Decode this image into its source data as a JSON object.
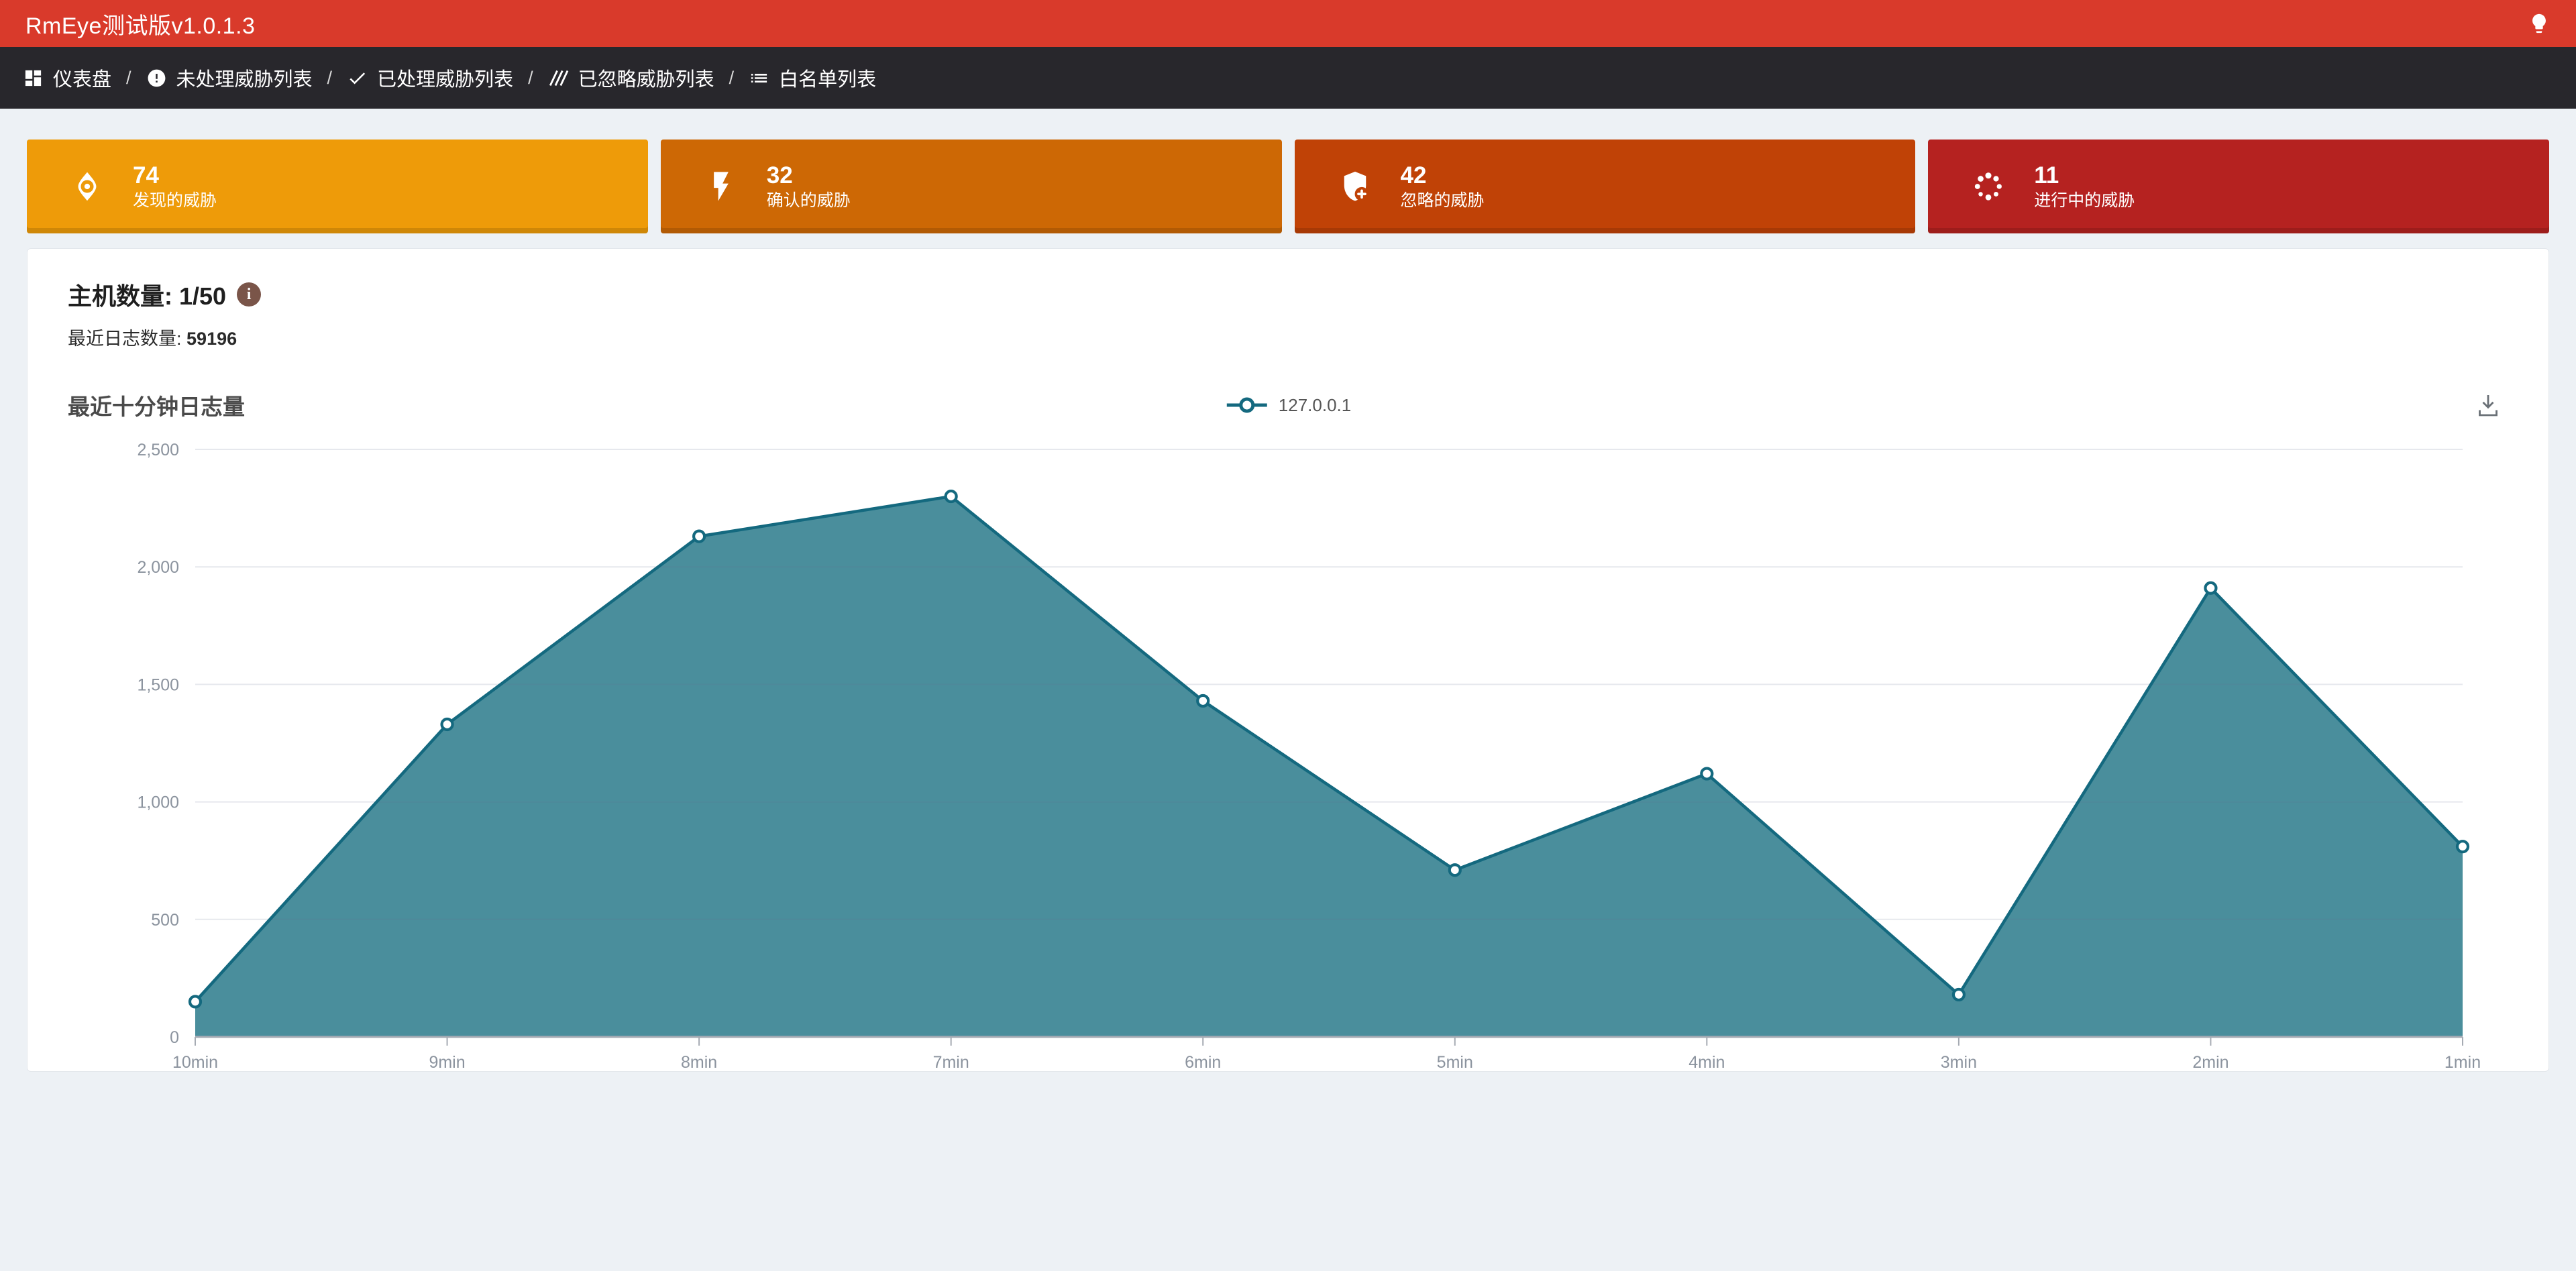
{
  "header": {
    "title": "RmEye测试版v1.0.1.3",
    "bg_color": "#d93a2b"
  },
  "navbar": {
    "separator": "/",
    "items": [
      {
        "label": "仪表盘",
        "icon": "dashboard-icon"
      },
      {
        "label": "未处理威胁列表",
        "icon": "alert-circle-icon"
      },
      {
        "label": "已处理威胁列表",
        "icon": "check-icon"
      },
      {
        "label": "已忽略威胁列表",
        "icon": "slashes-icon"
      },
      {
        "label": "白名单列表",
        "icon": "list-icon"
      }
    ]
  },
  "stat_cards": [
    {
      "value": "74",
      "label": "发现的威胁",
      "icon": "eye-icon",
      "bg": "#ee9b09"
    },
    {
      "value": "32",
      "label": "确认的威胁",
      "icon": "bolt-icon",
      "bg": "#cd6805"
    },
    {
      "value": "42",
      "label": "忽略的威胁",
      "icon": "shield-plus-icon",
      "bg": "#c04206"
    },
    {
      "value": "11",
      "label": "进行中的威胁",
      "icon": "spinner-icon",
      "bg": "#b52220"
    }
  ],
  "main": {
    "host_count_label": "主机数量:",
    "host_count_value": "1/50",
    "info_icon_glyph": "i",
    "log_count_label": "最近日志数量:",
    "log_count_value": "59196",
    "chart_title": "最近十分钟日志量"
  },
  "chart_data": {
    "type": "area",
    "title": "最近十分钟日志量",
    "categories": [
      "10min",
      "9min",
      "8min",
      "7min",
      "6min",
      "5min",
      "4min",
      "3min",
      "2min",
      "1min"
    ],
    "series": [
      {
        "name": "127.0.0.1",
        "values": [
          150,
          1330,
          2130,
          2300,
          1430,
          710,
          1120,
          180,
          1910,
          810
        ]
      }
    ],
    "xlabel": "",
    "ylabel": "",
    "ylim": [
      0,
      2500
    ],
    "ytick_step": 500,
    "grid": true,
    "legend_position": "top-center",
    "colors": {
      "line": "#14697f",
      "fill": "#4a8e9c"
    }
  }
}
